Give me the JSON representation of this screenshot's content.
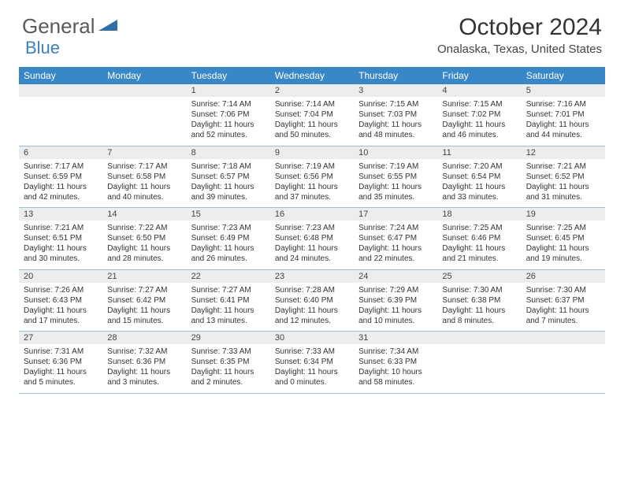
{
  "logo": {
    "text1": "General",
    "text2": "Blue"
  },
  "title": "October 2024",
  "location": "Onalaska, Texas, United States",
  "colors": {
    "header_bg": "#3a87c8",
    "header_text": "#ffffff",
    "daynum_bg": "#ecedee",
    "border": "#9fbfd8",
    "logo_gray": "#5a5a5a",
    "logo_blue": "#3e7fbf"
  },
  "weekdays": [
    "Sunday",
    "Monday",
    "Tuesday",
    "Wednesday",
    "Thursday",
    "Friday",
    "Saturday"
  ],
  "weeks": [
    {
      "nums": [
        "",
        "",
        "1",
        "2",
        "3",
        "4",
        "5"
      ],
      "cells": [
        null,
        null,
        {
          "sunrise": "7:14 AM",
          "sunset": "7:06 PM",
          "daylight": "11 hours and 52 minutes."
        },
        {
          "sunrise": "7:14 AM",
          "sunset": "7:04 PM",
          "daylight": "11 hours and 50 minutes."
        },
        {
          "sunrise": "7:15 AM",
          "sunset": "7:03 PM",
          "daylight": "11 hours and 48 minutes."
        },
        {
          "sunrise": "7:15 AM",
          "sunset": "7:02 PM",
          "daylight": "11 hours and 46 minutes."
        },
        {
          "sunrise": "7:16 AM",
          "sunset": "7:01 PM",
          "daylight": "11 hours and 44 minutes."
        }
      ]
    },
    {
      "nums": [
        "6",
        "7",
        "8",
        "9",
        "10",
        "11",
        "12"
      ],
      "cells": [
        {
          "sunrise": "7:17 AM",
          "sunset": "6:59 PM",
          "daylight": "11 hours and 42 minutes."
        },
        {
          "sunrise": "7:17 AM",
          "sunset": "6:58 PM",
          "daylight": "11 hours and 40 minutes."
        },
        {
          "sunrise": "7:18 AM",
          "sunset": "6:57 PM",
          "daylight": "11 hours and 39 minutes."
        },
        {
          "sunrise": "7:19 AM",
          "sunset": "6:56 PM",
          "daylight": "11 hours and 37 minutes."
        },
        {
          "sunrise": "7:19 AM",
          "sunset": "6:55 PM",
          "daylight": "11 hours and 35 minutes."
        },
        {
          "sunrise": "7:20 AM",
          "sunset": "6:54 PM",
          "daylight": "11 hours and 33 minutes."
        },
        {
          "sunrise": "7:21 AM",
          "sunset": "6:52 PM",
          "daylight": "11 hours and 31 minutes."
        }
      ]
    },
    {
      "nums": [
        "13",
        "14",
        "15",
        "16",
        "17",
        "18",
        "19"
      ],
      "cells": [
        {
          "sunrise": "7:21 AM",
          "sunset": "6:51 PM",
          "daylight": "11 hours and 30 minutes."
        },
        {
          "sunrise": "7:22 AM",
          "sunset": "6:50 PM",
          "daylight": "11 hours and 28 minutes."
        },
        {
          "sunrise": "7:23 AM",
          "sunset": "6:49 PM",
          "daylight": "11 hours and 26 minutes."
        },
        {
          "sunrise": "7:23 AM",
          "sunset": "6:48 PM",
          "daylight": "11 hours and 24 minutes."
        },
        {
          "sunrise": "7:24 AM",
          "sunset": "6:47 PM",
          "daylight": "11 hours and 22 minutes."
        },
        {
          "sunrise": "7:25 AM",
          "sunset": "6:46 PM",
          "daylight": "11 hours and 21 minutes."
        },
        {
          "sunrise": "7:25 AM",
          "sunset": "6:45 PM",
          "daylight": "11 hours and 19 minutes."
        }
      ]
    },
    {
      "nums": [
        "20",
        "21",
        "22",
        "23",
        "24",
        "25",
        "26"
      ],
      "cells": [
        {
          "sunrise": "7:26 AM",
          "sunset": "6:43 PM",
          "daylight": "11 hours and 17 minutes."
        },
        {
          "sunrise": "7:27 AM",
          "sunset": "6:42 PM",
          "daylight": "11 hours and 15 minutes."
        },
        {
          "sunrise": "7:27 AM",
          "sunset": "6:41 PM",
          "daylight": "11 hours and 13 minutes."
        },
        {
          "sunrise": "7:28 AM",
          "sunset": "6:40 PM",
          "daylight": "11 hours and 12 minutes."
        },
        {
          "sunrise": "7:29 AM",
          "sunset": "6:39 PM",
          "daylight": "11 hours and 10 minutes."
        },
        {
          "sunrise": "7:30 AM",
          "sunset": "6:38 PM",
          "daylight": "11 hours and 8 minutes."
        },
        {
          "sunrise": "7:30 AM",
          "sunset": "6:37 PM",
          "daylight": "11 hours and 7 minutes."
        }
      ]
    },
    {
      "nums": [
        "27",
        "28",
        "29",
        "30",
        "31",
        "",
        ""
      ],
      "cells": [
        {
          "sunrise": "7:31 AM",
          "sunset": "6:36 PM",
          "daylight": "11 hours and 5 minutes."
        },
        {
          "sunrise": "7:32 AM",
          "sunset": "6:36 PM",
          "daylight": "11 hours and 3 minutes."
        },
        {
          "sunrise": "7:33 AM",
          "sunset": "6:35 PM",
          "daylight": "11 hours and 2 minutes."
        },
        {
          "sunrise": "7:33 AM",
          "sunset": "6:34 PM",
          "daylight": "11 hours and 0 minutes."
        },
        {
          "sunrise": "7:34 AM",
          "sunset": "6:33 PM",
          "daylight": "10 hours and 58 minutes."
        },
        null,
        null
      ]
    }
  ],
  "labels": {
    "sunrise": "Sunrise: ",
    "sunset": "Sunset: ",
    "daylight": "Daylight: "
  }
}
